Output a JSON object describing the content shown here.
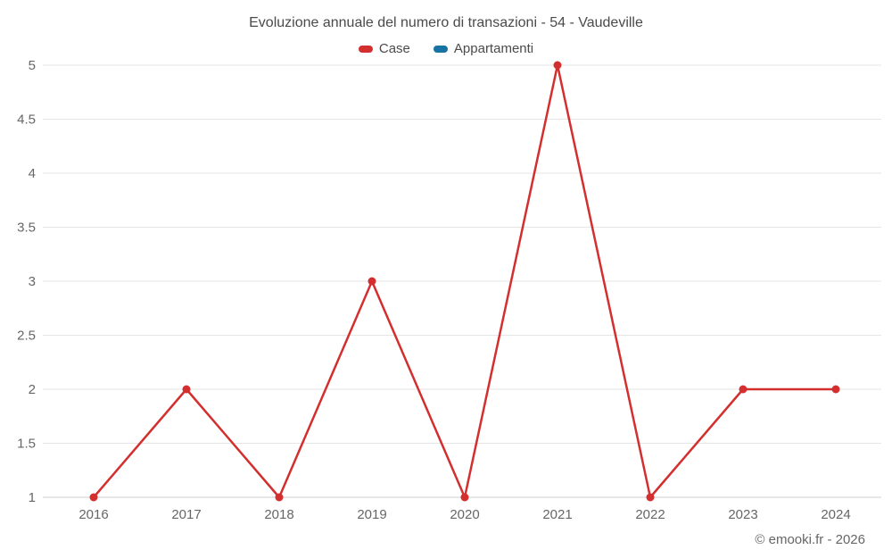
{
  "chart_data": {
    "type": "line",
    "title": "Evoluzione annuale del numero di transazioni - 54 - Vaudeville",
    "categories": [
      "2016",
      "2017",
      "2018",
      "2019",
      "2020",
      "2021",
      "2022",
      "2023",
      "2024"
    ],
    "series": [
      {
        "name": "Case",
        "color": "#d32f2f",
        "values": [
          1,
          2,
          1,
          3,
          1,
          5,
          1,
          2,
          2
        ]
      },
      {
        "name": "Appartamenti",
        "color": "#1673a3",
        "values": []
      }
    ],
    "xlabel": "",
    "ylabel": "",
    "ylim": [
      1,
      5
    ],
    "yticks": [
      1,
      1.5,
      2,
      2.5,
      3,
      3.5,
      4,
      4.5,
      5
    ],
    "grid": true,
    "legend_position": "top",
    "colors": {
      "gridline": "#e6e6e6",
      "baseline": "#cfcfcf",
      "tick_label": "#666666",
      "title": "#4a4a4a"
    }
  },
  "footer": {
    "credit": "© emooki.fr - 2026"
  }
}
